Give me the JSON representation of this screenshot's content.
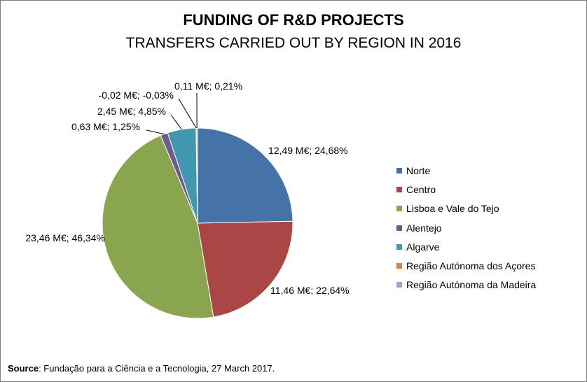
{
  "chart_data": {
    "type": "pie",
    "title": "FUNDING OF R&D PROJECTS",
    "subtitle": "TRANSFERS CARRIED OUT BY REGION IN 2016",
    "slices": [
      {
        "name": "Norte",
        "value": 12.49,
        "percent": 24.68,
        "label": "12,49 M€; 24,68%",
        "color": "#4572A7"
      },
      {
        "name": "Centro",
        "value": 11.46,
        "percent": 22.64,
        "label": "11,46 M€; 22,64%",
        "color": "#AA4643"
      },
      {
        "name": "Lisboa e Vale do Tejo",
        "value": 23.46,
        "percent": 46.34,
        "label": "23,46 M€; 46,34%",
        "color": "#89A54E"
      },
      {
        "name": "Alentejo",
        "value": 0.63,
        "percent": 1.25,
        "label": "0,63 M€; 1,25%",
        "color": "#71588F"
      },
      {
        "name": "Algarve",
        "value": 2.45,
        "percent": 4.85,
        "label": "2,45 M€; 4,85%",
        "color": "#4198AF"
      },
      {
        "name": "Região Autónoma dos Açores",
        "value": -0.02,
        "percent": -0.03,
        "label": "-0,02 M€; -0,03%",
        "color": "#DB843D"
      },
      {
        "name": "Região Autónoma da Madeira",
        "value": 0.11,
        "percent": 0.21,
        "label": "0,11 M€; 0,21%",
        "color": "#93A9CF"
      }
    ],
    "legend_position": "right"
  },
  "source": {
    "label": "Source",
    "text": ": Fundação para a Ciência e a Tecnologia, 27 March 2017."
  }
}
